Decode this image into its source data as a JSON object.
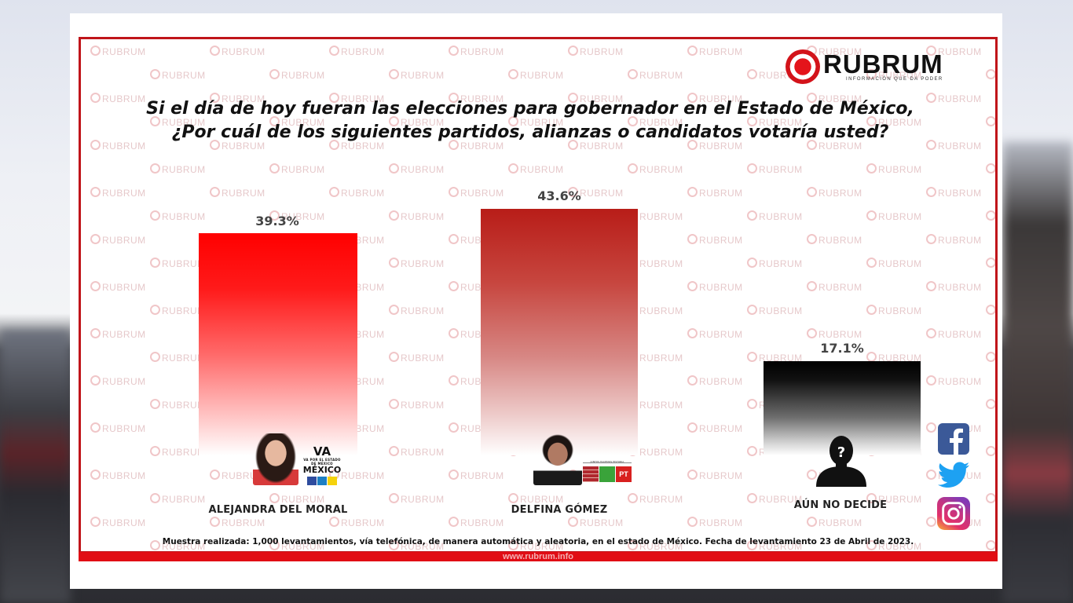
{
  "header": {
    "brand": "RUBRUM",
    "tagline": "INFORMACIÓN QUE DA PODER",
    "watermark": "RUBRUM"
  },
  "title": {
    "line1": "Si el día de hoy fueran las elecciones para gobernador en el Estado de México,",
    "line2": "¿Por cuál de los siguientes partidos, alianzas o candidatos votaría usted?"
  },
  "chart_data": {
    "type": "bar",
    "title": "Si el día de hoy fueran las elecciones para gobernador en el Estado de México, ¿Por cuál de los siguientes partidos, alianzas o candidatos votaría usted?",
    "categories": [
      "ALEJANDRA DEL MORAL",
      "DELFINA GÓMEZ",
      "AÚN NO DECIDE"
    ],
    "values": [
      39.3,
      43.6,
      17.1
    ],
    "value_labels": [
      "39.3%",
      "43.6%",
      "17.1%"
    ],
    "colors": [
      "#ff0000",
      "#b81d18",
      "#000000"
    ],
    "xlabel": "",
    "ylabel": "",
    "unit": "%",
    "grid": false,
    "legend": "none",
    "ylim": [
      0,
      50
    ]
  },
  "candidates": [
    {
      "name": "ALEJANDRA DEL MORAL",
      "value": "39.3%",
      "alliance": "VA POR EL ESTADO DE MÉXICO",
      "alliance_short": "VA",
      "alliance_word": "MÉXICO"
    },
    {
      "name": "DELFINA GÓMEZ",
      "value": "43.6%",
      "alliance": "JUNTOS HACEMOS HISTORIA",
      "alliance_parties": [
        "MORENA",
        "PVEM",
        "PT"
      ]
    },
    {
      "name": "AÚN NO DECIDE",
      "value": "17.1%",
      "icon": "unknown-person-icon"
    }
  ],
  "social": [
    "facebook-icon",
    "twitter-icon",
    "instagram-icon"
  ],
  "footer": {
    "note": "Muestra realizada: 1,000 levantamientos, vía telefónica, de manera automática y aleatoria, en el estado de México. Fecha de levantamiento 23 de Abril de 2023.",
    "url": "www.rubrum.info"
  }
}
